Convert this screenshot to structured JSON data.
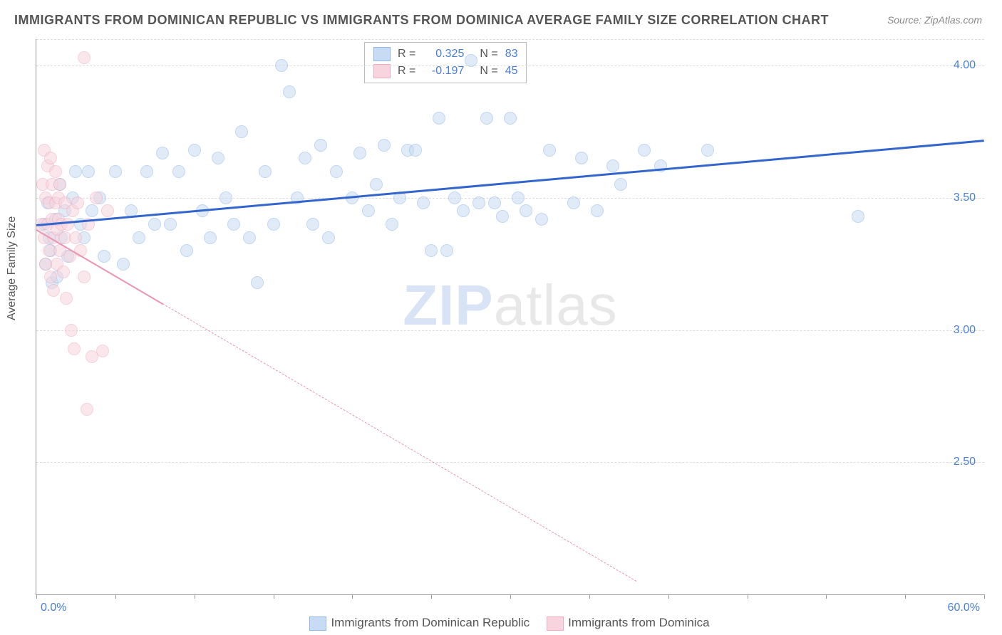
{
  "title": "IMMIGRANTS FROM DOMINICAN REPUBLIC VS IMMIGRANTS FROM DOMINICA AVERAGE FAMILY SIZE CORRELATION CHART",
  "source": "Source: ZipAtlas.com",
  "ylabel": "Average Family Size",
  "watermark_a": "ZIP",
  "watermark_b": "atlas",
  "chart": {
    "type": "scatter",
    "xlim": [
      0,
      60
    ],
    "ylim": [
      2.0,
      4.1
    ],
    "xtick_positions": [
      0,
      5,
      10,
      15,
      20,
      25,
      30,
      35,
      40,
      45,
      50,
      55,
      60
    ],
    "ytick_positions": [
      2.5,
      3.0,
      3.5,
      4.0
    ],
    "ytick_labels": [
      "2.50",
      "3.00",
      "3.50",
      "4.00"
    ],
    "xaxis_min_label": "0.0%",
    "xaxis_max_label": "60.0%",
    "grid_color": "#dddddd",
    "background_color": "#ffffff",
    "series": [
      {
        "name": "Immigrants from Dominican Republic",
        "color_fill": "#c7dbf2",
        "color_stroke": "#8fb8e8",
        "trend_color": "#3366cc",
        "R": "0.325",
        "N": "83",
        "trend_x1": 0,
        "trend_y1": 3.4,
        "trend_x2": 60,
        "trend_y2": 3.72,
        "trend_solid": true,
        "points": [
          [
            0.5,
            3.4
          ],
          [
            0.6,
            3.25
          ],
          [
            0.7,
            3.48
          ],
          [
            0.8,
            3.35
          ],
          [
            0.9,
            3.3
          ],
          [
            1.0,
            3.18
          ],
          [
            1.2,
            3.42
          ],
          [
            1.3,
            3.2
          ],
          [
            1.5,
            3.55
          ],
          [
            1.6,
            3.35
          ],
          [
            1.8,
            3.45
          ],
          [
            2.0,
            3.28
          ],
          [
            2.3,
            3.5
          ],
          [
            2.5,
            3.6
          ],
          [
            2.8,
            3.4
          ],
          [
            3.0,
            3.35
          ],
          [
            3.3,
            3.6
          ],
          [
            3.5,
            3.45
          ],
          [
            4.0,
            3.5
          ],
          [
            4.3,
            3.28
          ],
          [
            5.0,
            3.6
          ],
          [
            5.5,
            3.25
          ],
          [
            6.0,
            3.45
          ],
          [
            6.5,
            3.35
          ],
          [
            7.0,
            3.6
          ],
          [
            7.5,
            3.4
          ],
          [
            8.0,
            3.67
          ],
          [
            8.5,
            3.4
          ],
          [
            9.0,
            3.6
          ],
          [
            9.5,
            3.3
          ],
          [
            10.0,
            3.68
          ],
          [
            10.5,
            3.45
          ],
          [
            11.0,
            3.35
          ],
          [
            11.5,
            3.65
          ],
          [
            12.0,
            3.5
          ],
          [
            12.5,
            3.4
          ],
          [
            13.0,
            3.75
          ],
          [
            13.5,
            3.35
          ],
          [
            14.0,
            3.18
          ],
          [
            14.5,
            3.6
          ],
          [
            15.0,
            3.4
          ],
          [
            15.5,
            4.0
          ],
          [
            16.0,
            3.9
          ],
          [
            16.5,
            3.5
          ],
          [
            17.0,
            3.65
          ],
          [
            17.5,
            3.4
          ],
          [
            18.0,
            3.7
          ],
          [
            18.5,
            3.35
          ],
          [
            19.0,
            3.6
          ],
          [
            20.0,
            3.5
          ],
          [
            20.5,
            3.67
          ],
          [
            21.0,
            3.45
          ],
          [
            21.5,
            3.55
          ],
          [
            22.0,
            3.7
          ],
          [
            22.5,
            3.4
          ],
          [
            23.0,
            3.5
          ],
          [
            23.5,
            3.68
          ],
          [
            24.0,
            3.68
          ],
          [
            24.5,
            3.48
          ],
          [
            25.0,
            3.3
          ],
          [
            25.5,
            3.8
          ],
          [
            26.0,
            3.3
          ],
          [
            26.5,
            3.5
          ],
          [
            27.0,
            3.45
          ],
          [
            27.5,
            4.02
          ],
          [
            28.0,
            3.48
          ],
          [
            28.5,
            3.8
          ],
          [
            29.0,
            3.48
          ],
          [
            29.5,
            3.43
          ],
          [
            30.0,
            3.8
          ],
          [
            30.5,
            3.5
          ],
          [
            31.0,
            3.45
          ],
          [
            32.0,
            3.42
          ],
          [
            32.5,
            3.68
          ],
          [
            34.0,
            3.48
          ],
          [
            34.5,
            3.65
          ],
          [
            35.5,
            3.45
          ],
          [
            36.5,
            3.62
          ],
          [
            37.0,
            3.55
          ],
          [
            38.5,
            3.68
          ],
          [
            39.5,
            3.62
          ],
          [
            42.5,
            3.68
          ],
          [
            52.0,
            3.43
          ]
        ]
      },
      {
        "name": "Immigrants from Dominica",
        "color_fill": "#f7d4de",
        "color_stroke": "#efacc0",
        "trend_color": "#e995b0",
        "R": "-0.197",
        "N": "45",
        "trend_x1": 0,
        "trend_y1": 3.38,
        "trend_x2": 38,
        "trend_y2": 2.05,
        "trend_solid_until_x": 8,
        "points": [
          [
            0.3,
            3.4
          ],
          [
            0.4,
            3.55
          ],
          [
            0.5,
            3.35
          ],
          [
            0.5,
            3.68
          ],
          [
            0.6,
            3.25
          ],
          [
            0.6,
            3.5
          ],
          [
            0.7,
            3.62
          ],
          [
            0.7,
            3.4
          ],
          [
            0.8,
            3.48
          ],
          [
            0.8,
            3.3
          ],
          [
            0.9,
            3.65
          ],
          [
            0.9,
            3.2
          ],
          [
            1.0,
            3.42
          ],
          [
            1.0,
            3.55
          ],
          [
            1.1,
            3.35
          ],
          [
            1.1,
            3.15
          ],
          [
            1.2,
            3.48
          ],
          [
            1.2,
            3.6
          ],
          [
            1.3,
            3.38
          ],
          [
            1.3,
            3.25
          ],
          [
            1.4,
            3.5
          ],
          [
            1.4,
            3.42
          ],
          [
            1.5,
            3.3
          ],
          [
            1.5,
            3.55
          ],
          [
            1.6,
            3.4
          ],
          [
            1.7,
            3.22
          ],
          [
            1.8,
            3.48
          ],
          [
            1.8,
            3.35
          ],
          [
            1.9,
            3.12
          ],
          [
            2.0,
            3.4
          ],
          [
            2.1,
            3.28
          ],
          [
            2.2,
            3.0
          ],
          [
            2.3,
            3.45
          ],
          [
            2.4,
            2.93
          ],
          [
            2.5,
            3.35
          ],
          [
            2.6,
            3.48
          ],
          [
            2.8,
            3.3
          ],
          [
            3.0,
            3.2
          ],
          [
            3.2,
            2.7
          ],
          [
            3.0,
            4.03
          ],
          [
            3.3,
            3.4
          ],
          [
            3.5,
            2.9
          ],
          [
            3.8,
            3.5
          ],
          [
            4.2,
            2.92
          ],
          [
            4.5,
            3.45
          ]
        ]
      }
    ]
  }
}
